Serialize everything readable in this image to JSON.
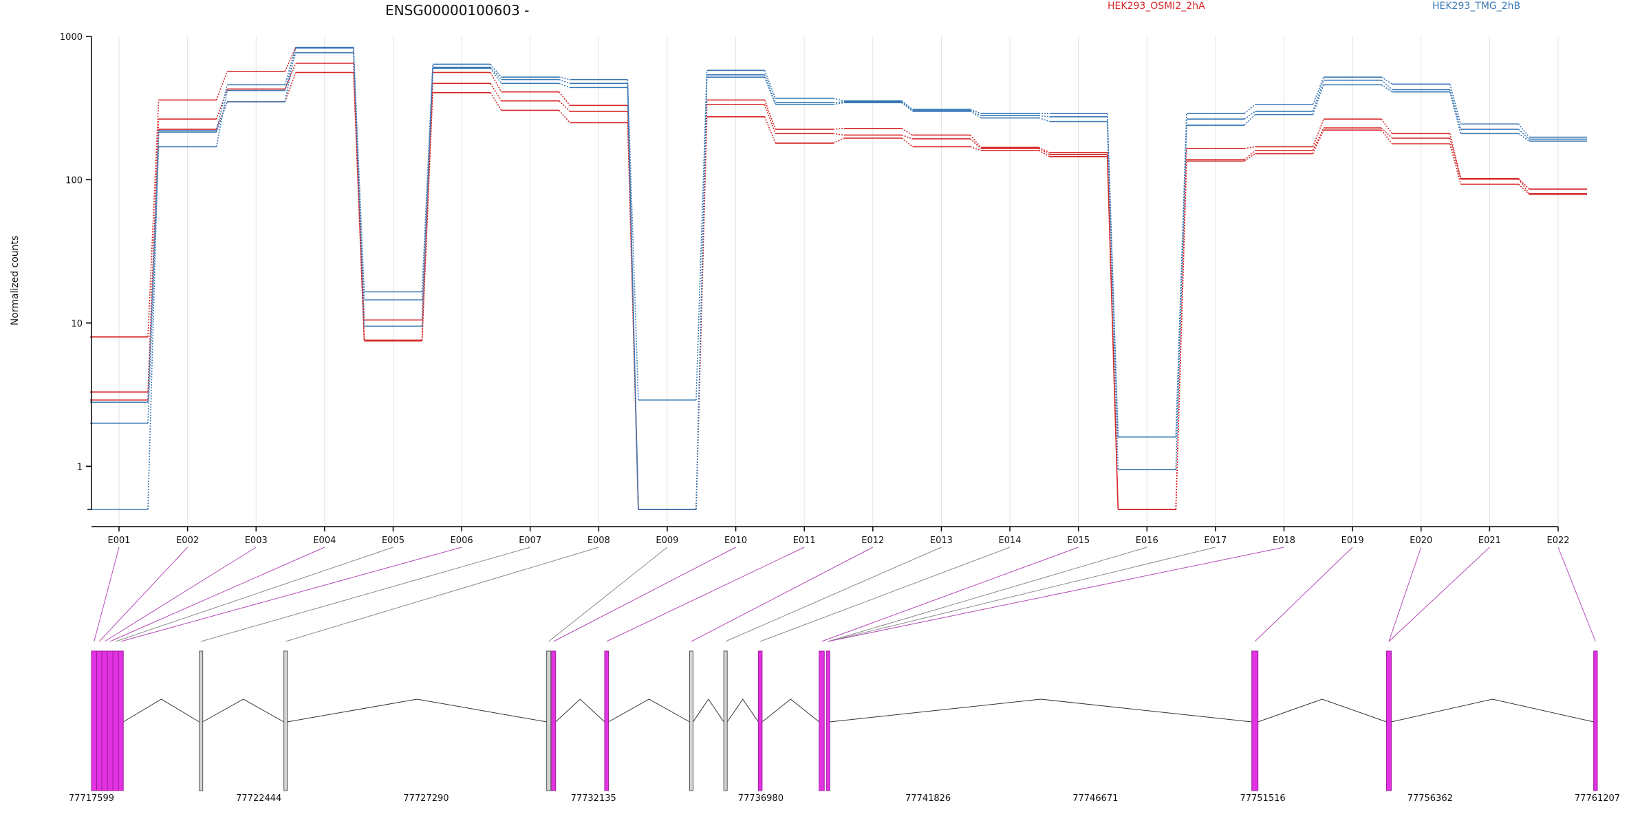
{
  "chart_data": {
    "type": "line",
    "title": "ENSG00000100603 -",
    "ylabel": "Normalized counts",
    "xlabel": "",
    "y_scale": "log",
    "ylim": [
      0.5,
      1000
    ],
    "y_ticks": [
      1,
      10,
      100,
      1000
    ],
    "y_tick_labels": [
      "1",
      "10",
      "100",
      "1000"
    ],
    "grid": "vertical",
    "legend_placement": "top",
    "categories": [
      "E001",
      "E002",
      "E003",
      "E004",
      "E005",
      "E006",
      "E007",
      "E008",
      "E009",
      "E010",
      "E011",
      "E012",
      "E013",
      "E014",
      "E015",
      "E016",
      "E017",
      "E018",
      "E019",
      "E020",
      "E021",
      "E022"
    ],
    "series": [
      {
        "name": "HEK293_OSMI2_2hA",
        "color": "#d62728",
        "values": [
          8.0,
          360,
          570,
          840,
          10.5,
          560,
          410,
          330,
          0.5,
          360,
          225,
          228,
          205,
          168,
          155,
          0.5,
          165,
          170,
          265,
          210,
          102,
          86
        ]
      },
      {
        "color": "#d62728",
        "values": [
          3.3,
          265,
          430,
          650,
          7.6,
          470,
          355,
          300,
          0.5,
          335,
          210,
          205,
          193,
          165,
          150,
          0.5,
          138,
          160,
          230,
          195,
          101,
          80
        ]
      },
      {
        "color": "#d62728",
        "values": [
          2.9,
          225,
          350,
          560,
          7.5,
          405,
          305,
          250,
          0.5,
          275,
          180,
          195,
          170,
          160,
          145,
          0.5,
          135,
          152,
          222,
          178,
          93,
          79
        ]
      },
      {
        "name": "HEK293_TMG_2hB",
        "color": "#3a78b5",
        "values": [
          2.8,
          220,
          460,
          840,
          16.5,
          640,
          520,
          500,
          2.9,
          580,
          370,
          355,
          310,
          290,
          290,
          1.6,
          290,
          335,
          520,
          465,
          245,
          198
        ]
      },
      {
        "color": "#3a78b5",
        "values": [
          2.0,
          170,
          420,
          770,
          14.5,
          610,
          500,
          470,
          0.5,
          540,
          345,
          350,
          305,
          280,
          275,
          1.6,
          265,
          300,
          495,
          425,
          225,
          192
        ]
      },
      {
        "color": "#3a78b5",
        "values": [
          0.5,
          215,
          350,
          830,
          9.5,
          600,
          470,
          440,
          0.5,
          520,
          335,
          345,
          300,
          270,
          255,
          0.95,
          240,
          285,
          460,
          410,
          210,
          186
        ]
      }
    ]
  },
  "legend": {
    "series_a": "HEK293_OSMI2_2hA",
    "series_b": "HEK293_TMG_2hB"
  },
  "gene_model": {
    "coord_ticks": [
      "77717599",
      "77722444",
      "77727290",
      "77732135",
      "77736980",
      "77741826",
      "77746671",
      "77751516",
      "77756362",
      "77761207"
    ],
    "colors": {
      "significant": "#e233e2",
      "significant_dark": "#a01ca0",
      "other": "#d4d4d4",
      "connector_sig": "#b549b5",
      "connector_other": "#8a8a8a"
    },
    "exons": [
      {
        "start": 77717599,
        "end": 77717750,
        "significant": true
      },
      {
        "start": 77717750,
        "end": 77717900,
        "significant": true
      },
      {
        "start": 77717900,
        "end": 77718060,
        "significant": true
      },
      {
        "start": 77718060,
        "end": 77718220,
        "significant": true
      },
      {
        "start": 77718220,
        "end": 77718380,
        "significant": true
      },
      {
        "start": 77718380,
        "end": 77718520,
        "significant": true
      },
      {
        "start": 77720720,
        "end": 77720820,
        "significant": false
      },
      {
        "start": 77723170,
        "end": 77723270,
        "significant": false
      },
      {
        "start": 77730780,
        "end": 77730900,
        "significant": false
      },
      {
        "start": 77730920,
        "end": 77731040,
        "significant": true
      },
      {
        "start": 77732460,
        "end": 77732570,
        "significant": true
      },
      {
        "start": 77734920,
        "end": 77735020,
        "significant": false
      },
      {
        "start": 77735910,
        "end": 77736010,
        "significant": false
      },
      {
        "start": 77736910,
        "end": 77737020,
        "significant": true
      },
      {
        "start": 77738670,
        "end": 77738820,
        "significant": true
      },
      {
        "start": 77738880,
        "end": 77738980,
        "significant": true
      },
      {
        "start": 77751200,
        "end": 77751380,
        "significant": true
      },
      {
        "start": 77755100,
        "end": 77755240,
        "significant": true
      },
      {
        "start": 77761100,
        "end": 77761207,
        "significant": true
      }
    ],
    "bin_to_exon": [
      0,
      1,
      2,
      3,
      4,
      5,
      6,
      7,
      8,
      9,
      10,
      11,
      12,
      13,
      14,
      15,
      15,
      15,
      16,
      17,
      17,
      18
    ],
    "bin_significant": [
      true,
      true,
      true,
      true,
      false,
      true,
      false,
      false,
      false,
      true,
      true,
      true,
      false,
      false,
      true,
      false,
      false,
      true,
      true,
      true,
      true,
      true
    ]
  }
}
